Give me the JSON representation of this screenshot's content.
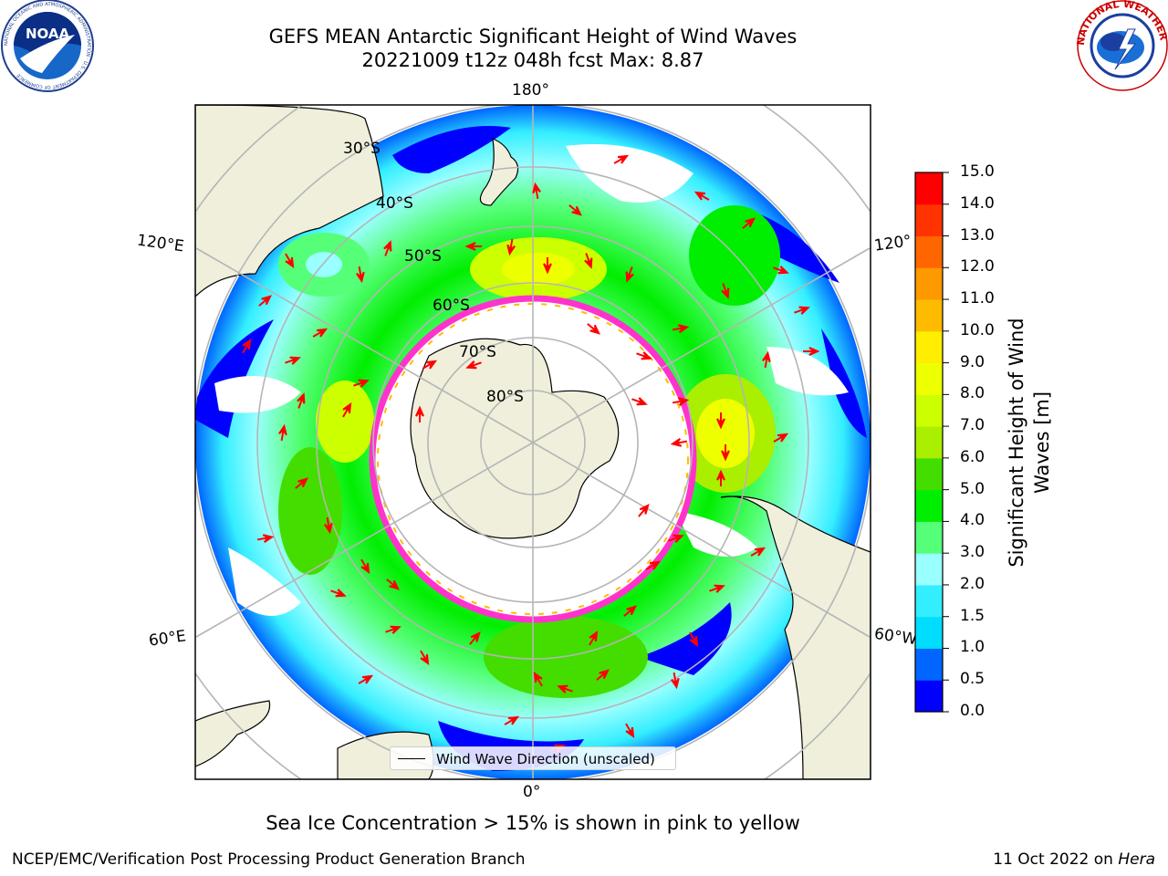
{
  "header": {
    "title_line1": "GEFS MEAN Antarctic Significant Height of Wind Waves",
    "title_line2": "20221009 t12z 048h fcst   Max: 8.87"
  },
  "logos": {
    "left": "NOAA",
    "left_ring": "NATIONAL OCEANIC AND ATMOSPHERIC ADMINISTRATION · U.S. DEPARTMENT OF COMMERCE",
    "right_ring": "NATIONAL WEATHER SERVICE"
  },
  "map": {
    "projection": "south-polar-stereographic",
    "longitude_labels": [
      "180°",
      "120°E",
      "120°",
      "60°E",
      "60°W",
      "0°"
    ],
    "latitude_labels": [
      "30°S",
      "40°S",
      "50°S",
      "60°S",
      "70°S",
      "80°S"
    ],
    "colors": {
      "land": "#efefdb",
      "ocean_none": "#ffffff",
      "grid": "#b5b5b5",
      "arrow": "#ff0000",
      "sea_ice": "#ff33cc"
    }
  },
  "legend": {
    "entry": "Wind Wave Direction (unscaled)"
  },
  "colorbar": {
    "label": "Significant Height of Wind Waves [m]",
    "label_line1": "Significant Height of Wind",
    "label_line2": "Waves [m]",
    "ticks": [
      "0.0",
      "0.5",
      "1.0",
      "1.5",
      "2.0",
      "3.0",
      "4.0",
      "5.0",
      "6.0",
      "7.0",
      "8.0",
      "9.0",
      "10.0",
      "11.0",
      "12.0",
      "13.0",
      "14.0",
      "15.0"
    ],
    "colors": [
      "#0000ff",
      "#0066ff",
      "#00ddff",
      "#33eeff",
      "#99ffff",
      "#55ff77",
      "#00ee00",
      "#44dd00",
      "#aaee00",
      "#ccff00",
      "#eeff00",
      "#ffee00",
      "#ffbb00",
      "#ff9900",
      "#ff6600",
      "#ff3300",
      "#ff0000"
    ]
  },
  "caption": "Sea Ice Concentration > 15% is shown in pink to yellow",
  "footer": {
    "left": "NCEP/EMC/Verification Post Processing Product Generation Branch",
    "right_prefix": "11 Oct 2022 on ",
    "right_host": "Hera"
  }
}
